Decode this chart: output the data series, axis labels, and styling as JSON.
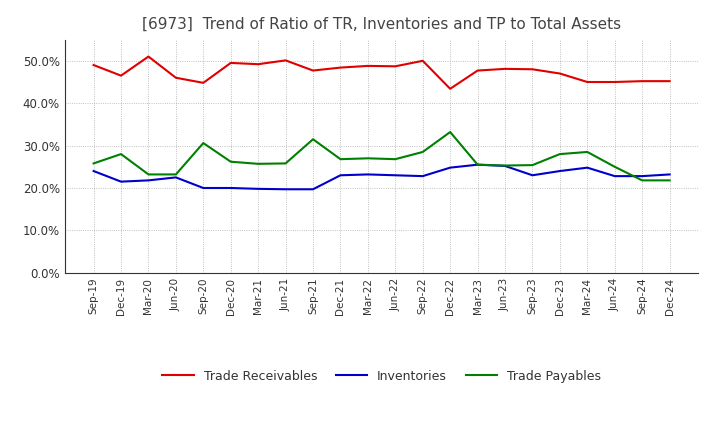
{
  "title": "[6973]  Trend of Ratio of TR, Inventories and TP to Total Assets",
  "x_labels": [
    "Sep-19",
    "Dec-19",
    "Mar-20",
    "Jun-20",
    "Sep-20",
    "Dec-20",
    "Mar-21",
    "Jun-21",
    "Sep-21",
    "Dec-21",
    "Mar-22",
    "Jun-22",
    "Sep-22",
    "Dec-22",
    "Mar-23",
    "Jun-23",
    "Sep-23",
    "Dec-23",
    "Mar-24",
    "Jun-24",
    "Sep-24",
    "Dec-24"
  ],
  "trade_receivables": [
    0.49,
    0.465,
    0.51,
    0.46,
    0.448,
    0.495,
    0.492,
    0.501,
    0.477,
    0.484,
    0.488,
    0.487,
    0.5,
    0.434,
    0.477,
    0.481,
    0.48,
    0.47,
    0.45,
    0.45,
    0.452,
    0.452
  ],
  "inventories": [
    0.24,
    0.215,
    0.218,
    0.225,
    0.2,
    0.2,
    0.198,
    0.197,
    0.197,
    0.23,
    0.232,
    0.23,
    0.228,
    0.248,
    0.255,
    0.252,
    0.23,
    0.24,
    0.248,
    0.228,
    0.228,
    0.232
  ],
  "trade_payables": [
    0.258,
    0.28,
    0.232,
    0.232,
    0.306,
    0.262,
    0.257,
    0.258,
    0.315,
    0.268,
    0.27,
    0.268,
    0.285,
    0.332,
    0.255,
    0.253,
    0.254,
    0.28,
    0.285,
    0.25,
    0.218,
    0.218
  ],
  "tr_color": "#e00000",
  "inv_color": "#0000cc",
  "tp_color": "#008000",
  "ylim": [
    0.0,
    0.55
  ],
  "yticks": [
    0.0,
    0.1,
    0.2,
    0.3,
    0.4,
    0.5
  ],
  "background_color": "#ffffff",
  "grid_color": "#999999",
  "title_color": "#444444"
}
